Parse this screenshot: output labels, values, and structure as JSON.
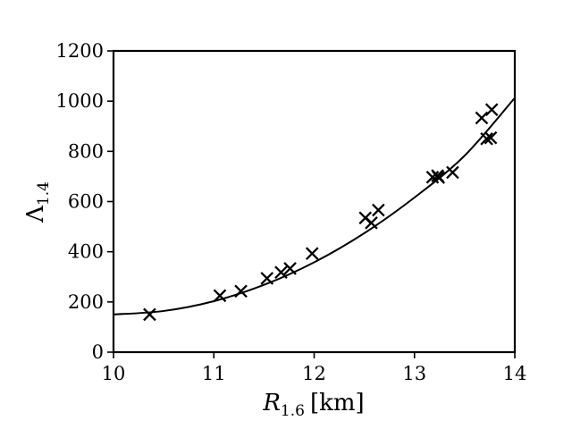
{
  "chart_data": {
    "type": "scatter",
    "title": "",
    "xlabel": {
      "symbol": "R",
      "subscript": "1.6",
      "unit": "[km]"
    },
    "ylabel": {
      "symbol": "Λ",
      "subscript": "1.4"
    },
    "xlim": [
      10,
      14
    ],
    "ylim": [
      0,
      1200
    ],
    "xticks": [
      10,
      11,
      12,
      13,
      14
    ],
    "yticks": [
      0,
      200,
      400,
      600,
      800,
      1000,
      1200
    ],
    "grid": false,
    "marker": "x",
    "color": "#000000",
    "series": [
      {
        "kind": "scatter",
        "points": [
          {
            "x": 10.36,
            "y": 150
          },
          {
            "x": 11.06,
            "y": 225
          },
          {
            "x": 11.27,
            "y": 243
          },
          {
            "x": 11.53,
            "y": 294
          },
          {
            "x": 11.67,
            "y": 318
          },
          {
            "x": 11.76,
            "y": 333
          },
          {
            "x": 11.98,
            "y": 393
          },
          {
            "x": 12.51,
            "y": 535
          },
          {
            "x": 12.57,
            "y": 515
          },
          {
            "x": 12.64,
            "y": 566
          },
          {
            "x": 13.18,
            "y": 697
          },
          {
            "x": 13.23,
            "y": 703
          },
          {
            "x": 13.24,
            "y": 696
          },
          {
            "x": 13.38,
            "y": 716
          },
          {
            "x": 13.67,
            "y": 933
          },
          {
            "x": 13.72,
            "y": 850
          },
          {
            "x": 13.76,
            "y": 854
          },
          {
            "x": 13.77,
            "y": 966
          }
        ]
      },
      {
        "kind": "fit-curve",
        "points": [
          {
            "x": 10.0,
            "y": 150
          },
          {
            "x": 10.5,
            "y": 164
          },
          {
            "x": 11.0,
            "y": 203
          },
          {
            "x": 11.5,
            "y": 268
          },
          {
            "x": 12.0,
            "y": 358
          },
          {
            "x": 12.5,
            "y": 474
          },
          {
            "x": 13.0,
            "y": 616
          },
          {
            "x": 13.5,
            "y": 783
          },
          {
            "x": 14.0,
            "y": 1013
          }
        ]
      }
    ]
  }
}
